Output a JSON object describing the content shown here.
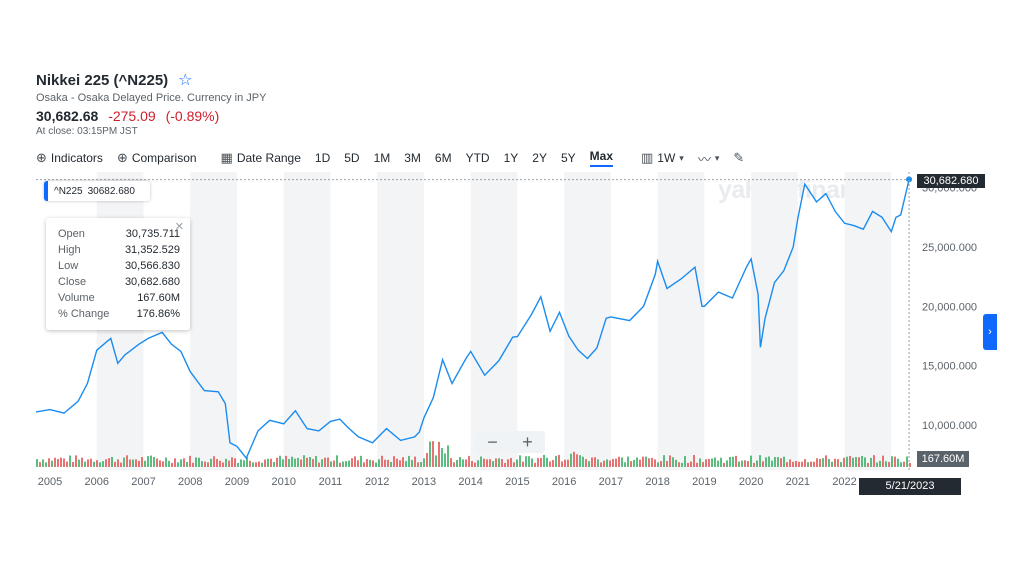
{
  "header": {
    "title": "Nikkei 225 (^N225)",
    "exchange_line": "Osaka - Osaka Delayed Price. Currency in JPY",
    "price": "30,682.68",
    "change": "-275.09",
    "change_pct": "(-0.89%)",
    "close_time": "At close: 03:15PM JST"
  },
  "toolbar": {
    "indicators": "Indicators",
    "comparison": "Comparison",
    "date_range": "Date Range",
    "ranges": [
      "1D",
      "5D",
      "1M",
      "3M",
      "6M",
      "YTD",
      "1Y",
      "2Y",
      "5Y",
      "Max"
    ],
    "active_range": "Max",
    "interval": "1W"
  },
  "tooltip": {
    "symbol": "^N225",
    "symbol_value": "30682.680",
    "rows": [
      {
        "label": "Open",
        "value": "30,735.711"
      },
      {
        "label": "High",
        "value": "31,352.529"
      },
      {
        "label": "Low",
        "value": "30,566.830"
      },
      {
        "label": "Close",
        "value": "30,682.680"
      },
      {
        "label": "Volume",
        "value": "167.60M"
      },
      {
        "label": "% Change",
        "value": "176.86%"
      }
    ]
  },
  "watermark": "yahoo!finance",
  "labels": {
    "last_price": "30,682.680",
    "last_volume": "167.60M",
    "crosshair_date": "5/21/2023"
  },
  "colors": {
    "line": "#1a8cf0",
    "vol_up": "#3fb26b",
    "vol_down": "#e35a5a",
    "accent": "#0f69ff",
    "band": "#f3f4f6"
  },
  "chart_data": {
    "type": "line",
    "title": "Nikkei 225 (^N225)",
    "x_ticks": [
      "2005",
      "2006",
      "2007",
      "2008",
      "2009",
      "2010",
      "2011",
      "2012",
      "2013",
      "2014",
      "2015",
      "2016",
      "2017",
      "2018",
      "2019",
      "2020",
      "2021",
      "2022"
    ],
    "y_ticks": [
      "25,000.000",
      "20,000.000",
      "15,000.000",
      "10,000.000"
    ],
    "y_partial_top_tick": "30,000.000",
    "ylim": [
      7000,
      31500
    ],
    "x_range": [
      2004.7,
      2023.4
    ],
    "series": [
      {
        "name": "^N225",
        "x": [
          2004.7,
          2005.0,
          2005.3,
          2005.6,
          2005.8,
          2006.0,
          2006.3,
          2006.45,
          2006.6,
          2006.9,
          2007.1,
          2007.4,
          2007.6,
          2007.8,
          2008.0,
          2008.3,
          2008.6,
          2008.75,
          2008.85,
          2009.0,
          2009.2,
          2009.45,
          2009.7,
          2010.0,
          2010.25,
          2010.5,
          2010.75,
          2011.0,
          2011.2,
          2011.4,
          2011.6,
          2011.9,
          2012.2,
          2012.5,
          2012.8,
          2012.9,
          2013.0,
          2013.2,
          2013.4,
          2013.6,
          2013.9,
          2014.0,
          2014.3,
          2014.6,
          2014.9,
          2015.0,
          2015.3,
          2015.5,
          2015.7,
          2015.9,
          2016.1,
          2016.3,
          2016.5,
          2016.7,
          2016.9,
          2017.0,
          2017.4,
          2017.7,
          2017.95,
          2018.0,
          2018.2,
          2018.5,
          2018.8,
          2018.95,
          2019.0,
          2019.3,
          2019.6,
          2019.9,
          2020.0,
          2020.15,
          2020.2,
          2020.3,
          2020.5,
          2020.7,
          2020.9,
          2021.0,
          2021.15,
          2021.4,
          2021.6,
          2021.8,
          2022.0,
          2022.2,
          2022.4,
          2022.6,
          2022.8,
          2023.0,
          2023.1,
          2023.2,
          2023.38
        ],
        "y": [
          11100,
          11300,
          11000,
          12000,
          13500,
          16300,
          17300,
          15200,
          15900,
          16800,
          17300,
          17800,
          16800,
          16200,
          14500,
          12900,
          12800,
          11800,
          8500,
          8200,
          7200,
          9500,
          10400,
          10100,
          11200,
          9700,
          9500,
          10300,
          10500,
          9700,
          9000,
          8500,
          9700,
          8700,
          9000,
          9400,
          10600,
          12300,
          15500,
          13500,
          15600,
          16200,
          14200,
          15400,
          17400,
          17450,
          19300,
          20800,
          17900,
          19500,
          17500,
          16300,
          15600,
          16500,
          19000,
          19100,
          18800,
          20000,
          22700,
          23800,
          21500,
          22300,
          23300,
          20000,
          20000,
          21200,
          20700,
          23300,
          24000,
          21000,
          16550,
          19000,
          22000,
          23000,
          25000,
          27400,
          30300,
          28800,
          29500,
          28000,
          27000,
          26800,
          26500,
          28000,
          27500,
          26300,
          27500,
          27700,
          30700
        ]
      },
      {
        "name": "Volume",
        "unit": "M",
        "last_value": 167.6
      }
    ],
    "grid": false,
    "legend": "none"
  }
}
